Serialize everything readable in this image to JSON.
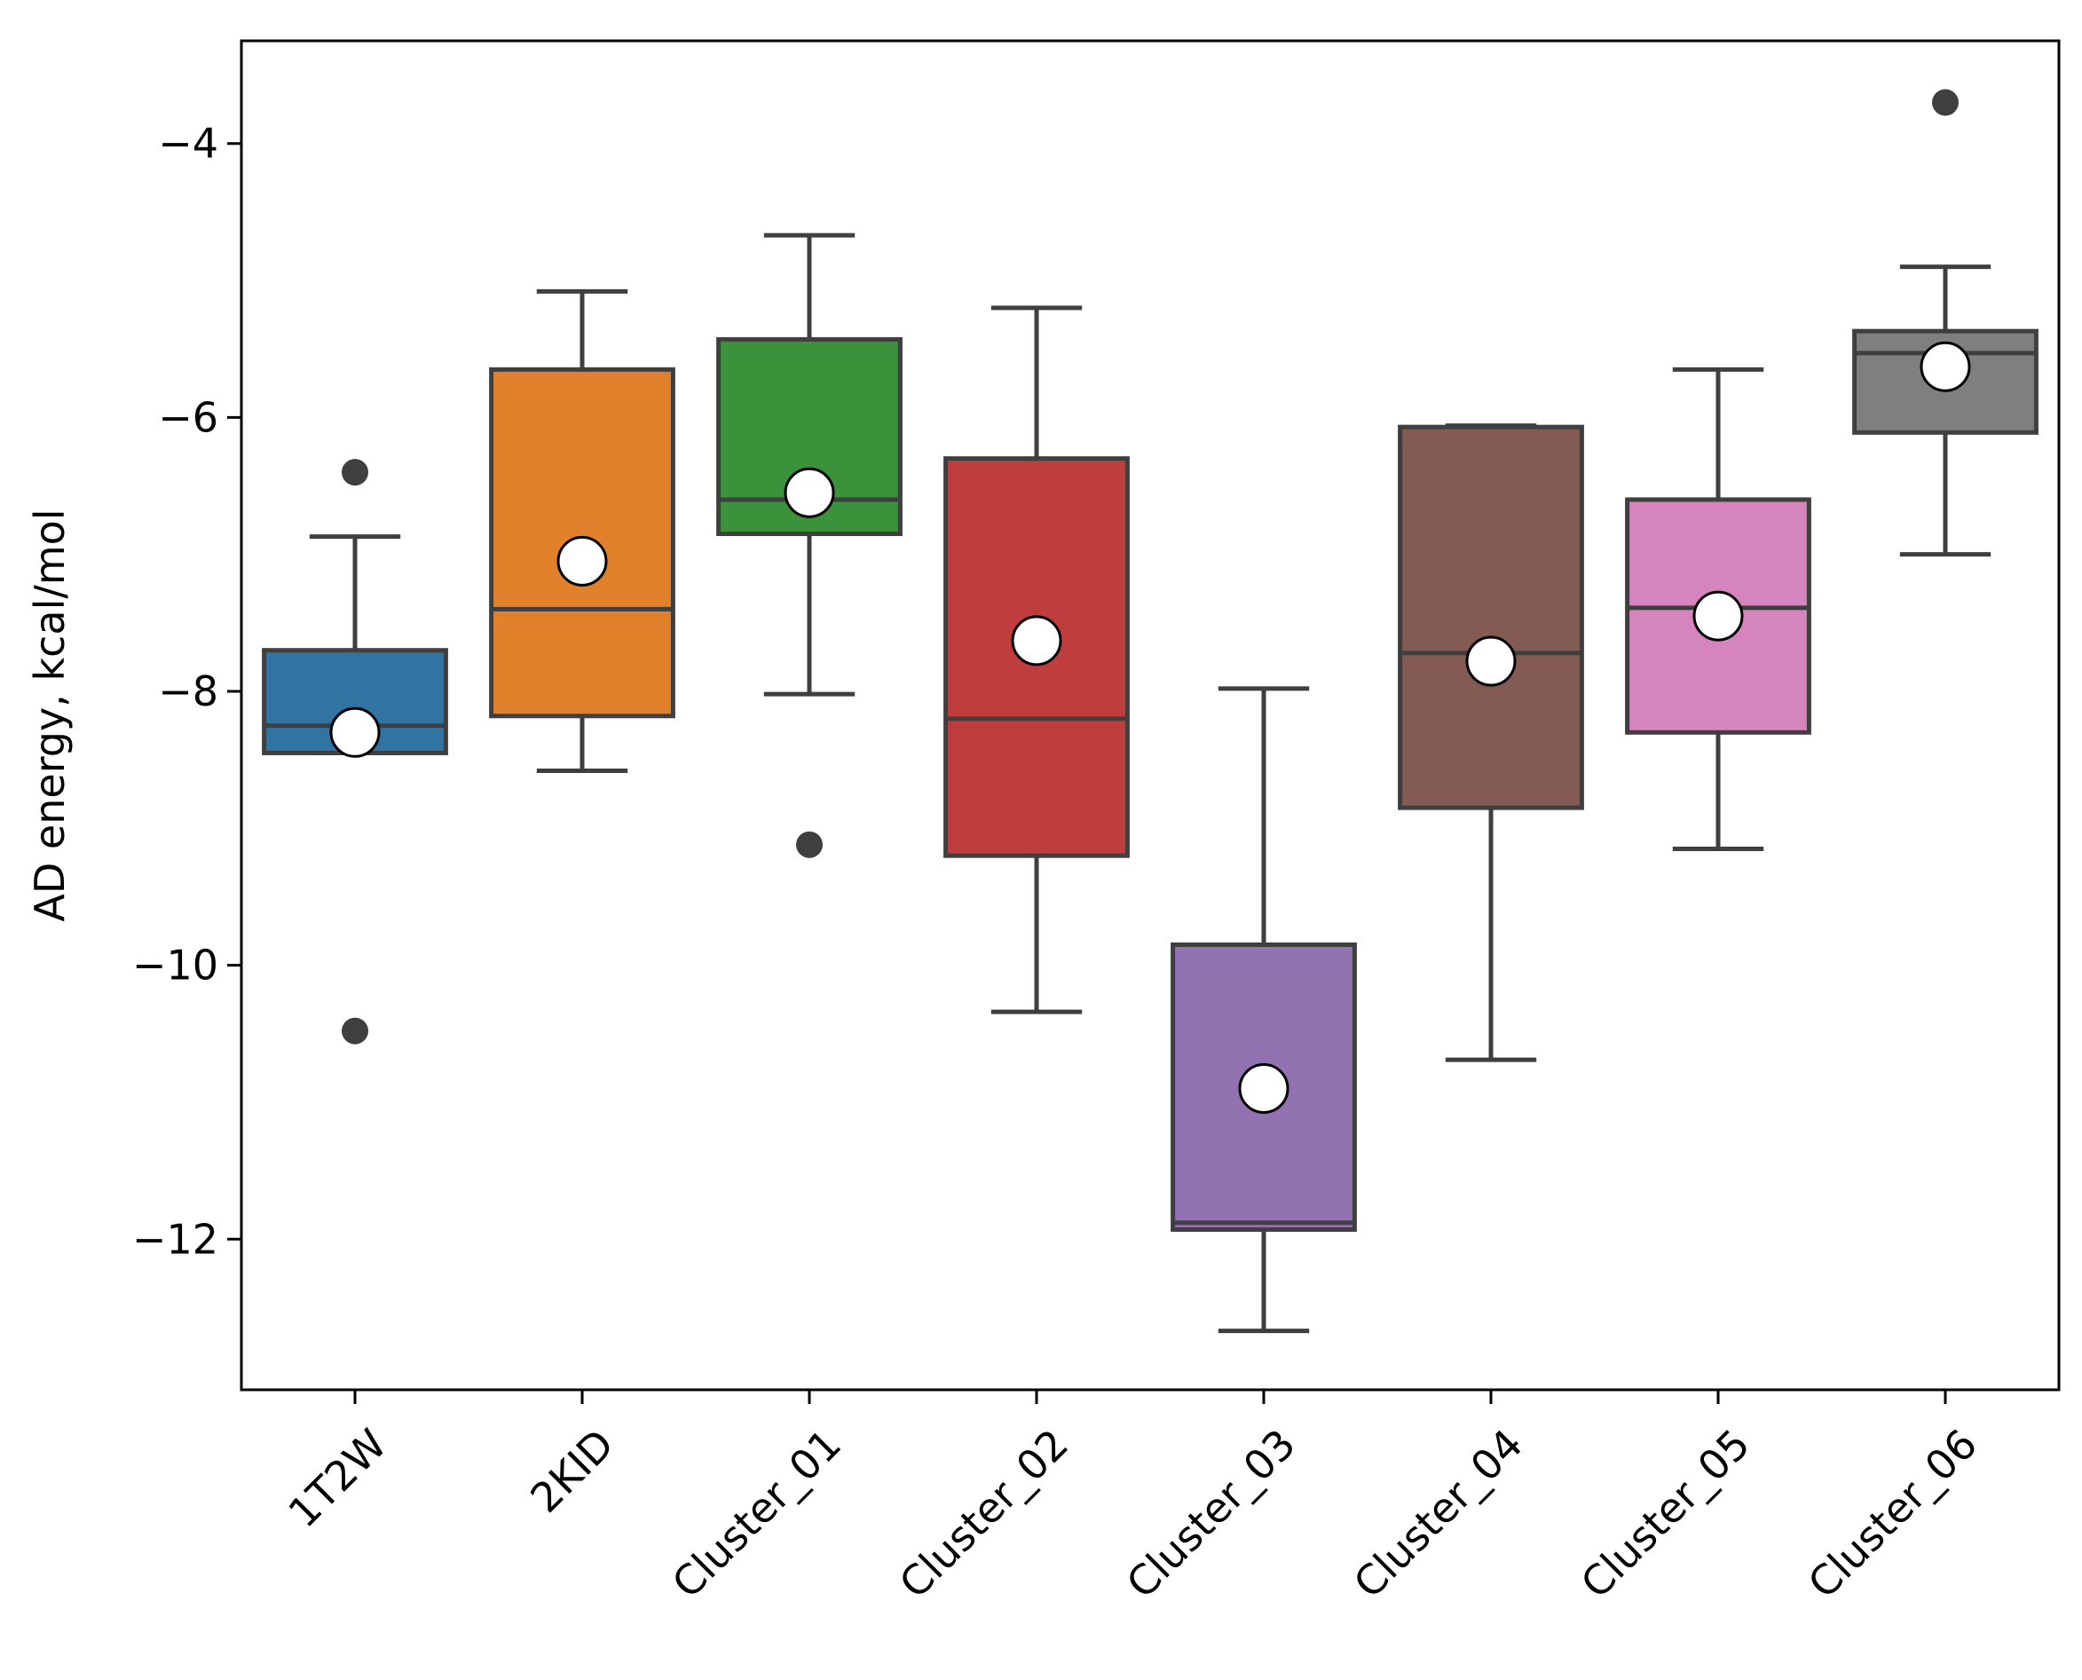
{
  "chart_data": {
    "type": "box",
    "title": "",
    "xlabel": "",
    "ylabel": "AD energy, kcal/mol",
    "ylim": [
      -13.1,
      -3.25
    ],
    "yticks": [
      -4,
      -6,
      -8,
      -10,
      -12
    ],
    "ytick_labels": [
      "−4",
      "−6",
      "−8",
      "−10",
      "−12"
    ],
    "categories": [
      "1T2W",
      "2KID",
      "Cluster_01",
      "Cluster_02",
      "Cluster_03",
      "Cluster_04",
      "Cluster_05",
      "Cluster_06"
    ],
    "boxes": [
      {
        "name": "1T2W",
        "color": "#3274a1",
        "whisker_low": -8.45,
        "q1": -8.45,
        "median": -8.25,
        "q3": -7.7,
        "whisker_high": -6.87,
        "mean": -8.3,
        "outliers": [
          -6.4,
          -10.48
        ]
      },
      {
        "name": "2KID",
        "color": "#e1812c",
        "whisker_low": -8.58,
        "q1": -8.18,
        "median": -7.4,
        "q3": -5.65,
        "whisker_high": -5.08,
        "mean": -7.05,
        "outliers": []
      },
      {
        "name": "Cluster_01",
        "color": "#3a923a",
        "whisker_low": -8.02,
        "q1": -6.85,
        "median": -6.6,
        "q3": -5.43,
        "whisker_high": -4.67,
        "mean": -6.55,
        "outliers": [
          -9.12
        ]
      },
      {
        "name": "Cluster_02",
        "color": "#c03d3e",
        "whisker_low": -10.34,
        "q1": -9.2,
        "median": -8.2,
        "q3": -6.3,
        "whisker_high": -5.2,
        "mean": -7.63,
        "outliers": []
      },
      {
        "name": "Cluster_03",
        "color": "#9372b2",
        "whisker_low": -12.67,
        "q1": -11.93,
        "median": -11.88,
        "q3": -9.85,
        "whisker_high": -7.98,
        "mean": -10.9,
        "outliers": []
      },
      {
        "name": "Cluster_04",
        "color": "#845b53",
        "whisker_low": -10.69,
        "q1": -8.85,
        "median": -7.72,
        "q3": -6.07,
        "whisker_high": -6.06,
        "mean": -7.78,
        "outliers": []
      },
      {
        "name": "Cluster_05",
        "color": "#d684bd",
        "whisker_low": -9.15,
        "q1": -8.3,
        "median": -7.39,
        "q3": -6.6,
        "whisker_high": -5.65,
        "mean": -7.45,
        "outliers": []
      },
      {
        "name": "Cluster_06",
        "color": "#7f7f7f",
        "whisker_low": -7.0,
        "q1": -6.11,
        "median": -5.53,
        "q3": -5.37,
        "whisker_high": -4.9,
        "mean": -5.63,
        "outliers": [
          -3.7
        ]
      }
    ],
    "colors": {
      "edge": "#3f3f3f",
      "mean_fill": "#ffffff",
      "mean_edge": "#000000",
      "axis": "#000000"
    },
    "grid": false,
    "legend": "none"
  }
}
